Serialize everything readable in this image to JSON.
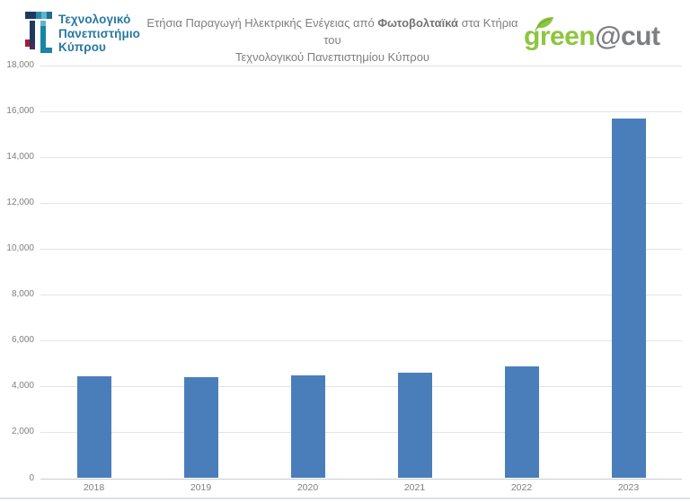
{
  "header": {
    "university_logo": {
      "line1": "Τεχνολογικό",
      "line2": "Πανεπιστήμιο",
      "line3": "Κύπρου"
    },
    "title": {
      "line1_pre": "Ετήσια Παραγωγή Ηλεκτρικής Ενέγειας από ",
      "line1_bold": "Φωτοβολταϊκά",
      "line1_post": " στα Κτήρια του",
      "line2": "Τεχνολογικού Πανεπιστημίου Κύπρου"
    },
    "green_cut_logo": {
      "green_text": "green",
      "cut_text": "@cut",
      "green_color": "#8dc63f",
      "cut_color": "#7d7f82",
      "leaf_icon": "leaf-icon"
    }
  },
  "chart_data": {
    "type": "bar",
    "title": "Ετήσια Παραγωγή Ηλεκτρικής Ενέγειας από Φωτοβολταϊκά στα Κτήρια του Τεχνολογικού Πανεπιστημίου Κύπρου",
    "categories": [
      "2018",
      "2019",
      "2020",
      "2021",
      "2022",
      "2023"
    ],
    "values": [
      4450,
      4390,
      4470,
      4600,
      4890,
      15700
    ],
    "xlabel": "",
    "ylabel": "",
    "ylim": [
      0,
      18000
    ],
    "ytick_step": 2000,
    "ytick_labels": [
      "0",
      "2,000",
      "4,000",
      "6,000",
      "8,000",
      "10,000",
      "12,000",
      "14,000",
      "16,000",
      "18,000"
    ],
    "grid": true,
    "legend": false,
    "bar_color": "#4a7ebb",
    "gridline_color": "#e4e4e4",
    "axis_line_color": "#c9cdd2",
    "tick_color": "#7f7f7f"
  }
}
